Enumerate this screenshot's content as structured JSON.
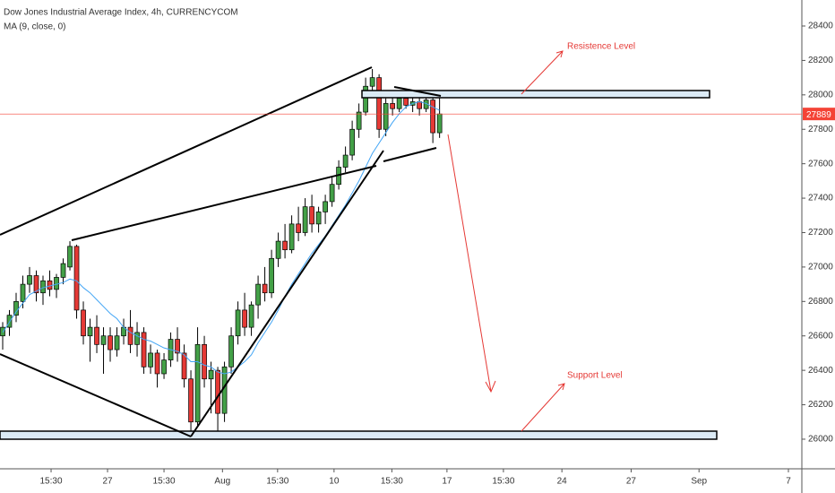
{
  "chart_data": {
    "type": "candlestick",
    "title": "Dow Jones Industrial Average Index, 4h, CURRENCYCOM",
    "subtitle": "MA (9, close, 0)",
    "x": [
      0,
      1,
      2,
      3,
      4,
      5,
      6,
      7,
      8,
      9,
      10,
      11,
      12,
      13,
      14,
      15,
      16,
      17,
      18,
      19,
      20,
      21,
      22,
      23,
      24,
      25,
      26,
      27,
      28,
      29,
      30,
      31,
      32,
      33,
      34,
      35,
      36,
      37,
      38,
      39,
      40,
      41,
      42,
      43,
      44,
      45,
      46,
      47,
      48,
      49,
      50,
      51,
      52,
      53,
      54,
      55,
      56,
      57,
      58,
      59,
      60,
      61,
      62,
      63,
      64,
      65
    ],
    "open": [
      26600,
      26650,
      26720,
      26800,
      26900,
      26950,
      26850,
      26920,
      26870,
      26940,
      27000,
      27120,
      26750,
      26600,
      26650,
      26550,
      26600,
      26520,
      26600,
      26650,
      26550,
      26620,
      26420,
      26500,
      26380,
      26460,
      26580,
      26500,
      26350,
      26100,
      26550,
      26350,
      26400,
      26150,
      26420,
      26600,
      26750,
      26650,
      26780,
      26900,
      26850,
      27050,
      27150,
      27100,
      27250,
      27200,
      27350,
      27250,
      27320,
      27380,
      27480,
      27580,
      27650,
      27800,
      27900,
      28050,
      28100,
      27800,
      27950,
      27920,
      27980,
      27940,
      27960,
      27920,
      27970,
      27780
    ],
    "high": [
      26680,
      26750,
      26850,
      26950,
      27000,
      26980,
      26950,
      26980,
      26960,
      27050,
      27150,
      27130,
      26800,
      26700,
      26720,
      26650,
      26650,
      26650,
      26700,
      26750,
      26680,
      26650,
      26550,
      26520,
      26500,
      26620,
      26650,
      26550,
      26400,
      26650,
      26600,
      26450,
      26420,
      26450,
      26650,
      26800,
      26850,
      26800,
      26950,
      27000,
      27100,
      27200,
      27250,
      27300,
      27350,
      27400,
      27420,
      27350,
      27420,
      27520,
      27620,
      27700,
      27850,
      27950,
      28100,
      28150,
      28120,
      27980,
      28020,
      28000,
      28000,
      27990,
      28000,
      27990,
      27990,
      27990
    ],
    "low": [
      26520,
      26600,
      26680,
      26760,
      26850,
      26800,
      26780,
      26830,
      26820,
      26900,
      26980,
      26700,
      26550,
      26450,
      26500,
      26380,
      26450,
      26480,
      26550,
      26500,
      26480,
      26380,
      26380,
      26300,
      26350,
      26420,
      26450,
      26300,
      26000,
      26080,
      26300,
      26150,
      26020,
      26100,
      26380,
      26550,
      26600,
      26600,
      26700,
      26800,
      26820,
      27000,
      27050,
      27080,
      27150,
      27180,
      27200,
      27200,
      27250,
      27350,
      27450,
      27550,
      27620,
      27750,
      27880,
      28000,
      27750,
      27760,
      27880,
      27900,
      27920,
      27900,
      27880,
      27900,
      27720,
      27750
    ],
    "close": [
      26650,
      26720,
      26800,
      26900,
      26950,
      26850,
      26920,
      26870,
      26940,
      27020,
      27120,
      26750,
      26600,
      26650,
      26550,
      26600,
      26520,
      26600,
      26650,
      26550,
      26620,
      26420,
      26500,
      26380,
      26460,
      26580,
      26500,
      26350,
      26100,
      26550,
      26350,
      26400,
      26150,
      26420,
      26600,
      26750,
      26650,
      26780,
      26900,
      26850,
      27050,
      27150,
      27100,
      27250,
      27200,
      27350,
      27250,
      27320,
      27380,
      27480,
      27580,
      27650,
      27800,
      27900,
      28050,
      28100,
      27800,
      27950,
      27920,
      27980,
      27940,
      27960,
      27920,
      27970,
      27780,
      27889
    ],
    "ma": [
      26620,
      26680,
      26740,
      26790,
      26840,
      26860,
      26880,
      26890,
      26900,
      26910,
      26930,
      26920,
      26880,
      26850,
      26810,
      26770,
      26730,
      26700,
      26650,
      26620,
      26600,
      26580,
      26570,
      26550,
      26530,
      26520,
      26510,
      26490,
      26450,
      26450,
      26430,
      26420,
      26390,
      26380,
      26390,
      26420,
      26450,
      26490,
      26560,
      26620,
      26680,
      26750,
      26830,
      26900,
      26960,
      27020,
      27080,
      27130,
      27180,
      27240,
      27300,
      27360,
      27430,
      27500,
      27580,
      27660,
      27720,
      27780,
      27840,
      27890,
      27930,
      27950,
      27960,
      27950,
      27930,
      27910
    ],
    "up_color": "#43a047",
    "down_color": "#e53935",
    "ma_color": "#42a5f5",
    "last_color": "#f44336",
    "xlim": [
      -0.4,
      118.9
    ],
    "ylim": [
      25828,
      28551
    ],
    "xticks": [
      {
        "value": 7.2,
        "label": "15:30"
      },
      {
        "value": 15.6,
        "label": "27"
      },
      {
        "value": 24,
        "label": "15:30"
      },
      {
        "value": 32.7,
        "label": "Aug"
      },
      {
        "value": 40.9,
        "label": "15:30"
      },
      {
        "value": 49.3,
        "label": "10"
      },
      {
        "value": 57.9,
        "label": "15:30"
      },
      {
        "value": 66.1,
        "label": "17"
      },
      {
        "value": 74.5,
        "label": "15:30"
      },
      {
        "value": 83.2,
        "label": "24"
      },
      {
        "value": 93.5,
        "label": "27"
      },
      {
        "value": 103.6,
        "label": "Sep"
      },
      {
        "value": 116.9,
        "label": "7"
      }
    ],
    "yticks": [
      26000,
      26200,
      26400,
      26600,
      26800,
      27000,
      27200,
      27400,
      27600,
      27800,
      28000,
      28200,
      28400
    ],
    "annotations": [
      "Resistence Level",
      "Support Level"
    ]
  }
}
